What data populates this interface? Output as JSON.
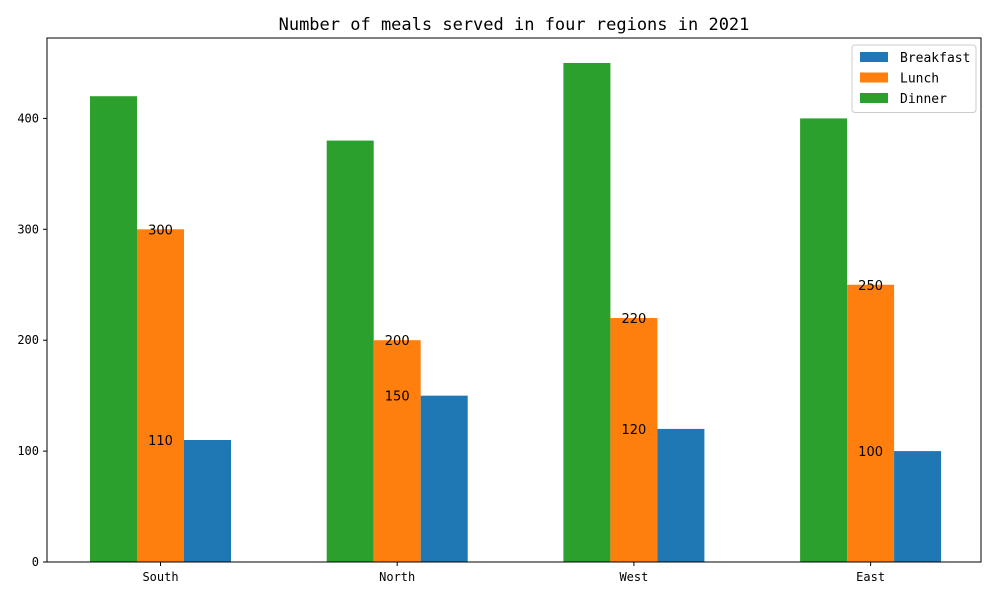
{
  "chart_data": {
    "type": "bar",
    "title": "Number of meals served in four regions in 2021",
    "xlabel": "",
    "ylabel": "",
    "categories": [
      "South",
      "North",
      "West",
      "East"
    ],
    "series": [
      {
        "name": "Breakfast",
        "values": [
          110,
          150,
          120,
          100
        ],
        "color": "#1f77b4"
      },
      {
        "name": "Lunch",
        "values": [
          300,
          200,
          220,
          250
        ],
        "color": "#ff7f0e"
      },
      {
        "name": "Dinner",
        "values": [
          420,
          380,
          450,
          400
        ],
        "color": "#2ca02c"
      }
    ],
    "draw_order": [
      "Dinner",
      "Lunch",
      "Breakfast"
    ],
    "yticks": [
      0,
      100,
      200,
      300,
      400
    ],
    "ylim": [
      0,
      472.5
    ],
    "grid": false,
    "legend_position": "top-right",
    "data_labels": [
      {
        "category": "South",
        "text": "300",
        "value": 300
      },
      {
        "category": "South",
        "text": "110",
        "value": 110
      },
      {
        "category": "North",
        "text": "200",
        "value": 200
      },
      {
        "category": "North",
        "text": "150",
        "value": 150
      },
      {
        "category": "West",
        "text": "220",
        "value": 220
      },
      {
        "category": "West",
        "text": "120",
        "value": 120
      },
      {
        "category": "East",
        "text": "250",
        "value": 250
      },
      {
        "category": "East",
        "text": "100",
        "value": 100
      }
    ]
  }
}
